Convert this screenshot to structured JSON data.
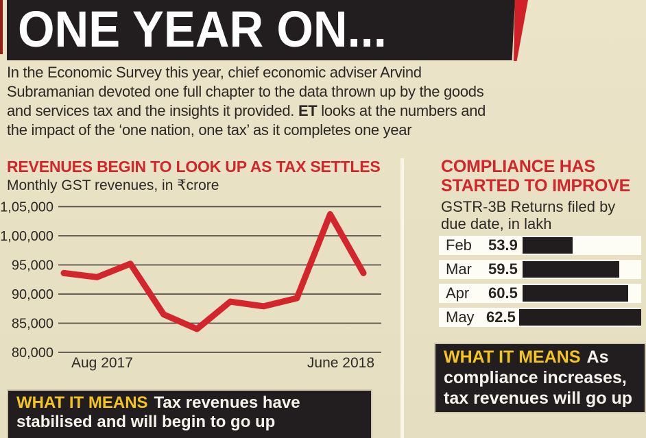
{
  "banner": {
    "title": "ONE YEAR ON..."
  },
  "intro": {
    "text_before": "In the Economic Survey this year, chief economic adviser Arvind\nSubramanian devoted one full chapter to the data thrown up by the goods\nand services tax and the insights it provided. ",
    "bold": "ET",
    "text_after": " looks at the numbers and\nthe impact of the ‘one nation, one tax’ as it completes one year"
  },
  "revenue_section": {
    "heading": "REVENUES BEGIN TO LOOK UP AS TAX SETTLES",
    "subtitle": "Monthly GST revenues, in ₹crore",
    "what_it_means_label": "WHAT IT MEANS",
    "what_it_means_text": "Tax revenues have\nstabilised and will begin to go up"
  },
  "compliance_section": {
    "heading": "COMPLIANCE HAS\nSTARTED TO IMPROVE",
    "subtitle": "GSTR-3B Returns filed by\ndue date, in lakh",
    "what_it_means_label": "WHAT IT MEANS",
    "what_it_means_text": "As\ncompliance increases,\ntax revenues will go up"
  },
  "chart_data": [
    {
      "type": "line",
      "title": "REVENUES BEGIN TO LOOK UP AS TAX SETTLES",
      "subtitle": "Monthly GST revenues, in ₹crore",
      "x_axis_labels": [
        "Aug 2017",
        "June 2018"
      ],
      "x": [
        "Aug 2017",
        "",
        "",
        "",
        "",
        "",
        "",
        "",
        "",
        "June 2018"
      ],
      "values": [
        93600,
        92900,
        95200,
        86500,
        84000,
        88700,
        87900,
        89300,
        103700,
        93600
      ],
      "y_ticks": [
        "1,05,000",
        "1,00,000",
        "95,000",
        "90,000",
        "85,000",
        "80,000"
      ],
      "y_tick_values": [
        105000,
        100000,
        95000,
        90000,
        85000,
        80000
      ],
      "ylim": [
        80000,
        106500
      ],
      "grid": true,
      "legend": "none",
      "line_color": "#d2262c",
      "grid_color": "#534e48"
    },
    {
      "type": "bar",
      "orientation": "horizontal",
      "title": "COMPLIANCE HAS STARTED TO IMPROVE",
      "subtitle": "GSTR-3B Returns filed by due date, in lakh",
      "categories": [
        "Feb",
        "Mar",
        "Apr",
        "May"
      ],
      "values": [
        53.9,
        59.5,
        60.5,
        62.5
      ],
      "bar_color": "#211d1e"
    }
  ],
  "colors": {
    "background": "#e9e1c4",
    "banner_black": "#221e1f",
    "accent_red": "#d2262c",
    "highlight_yellow": "#f5c51d",
    "row_white": "#fdfcf5",
    "text_dark": "#2c2824"
  }
}
